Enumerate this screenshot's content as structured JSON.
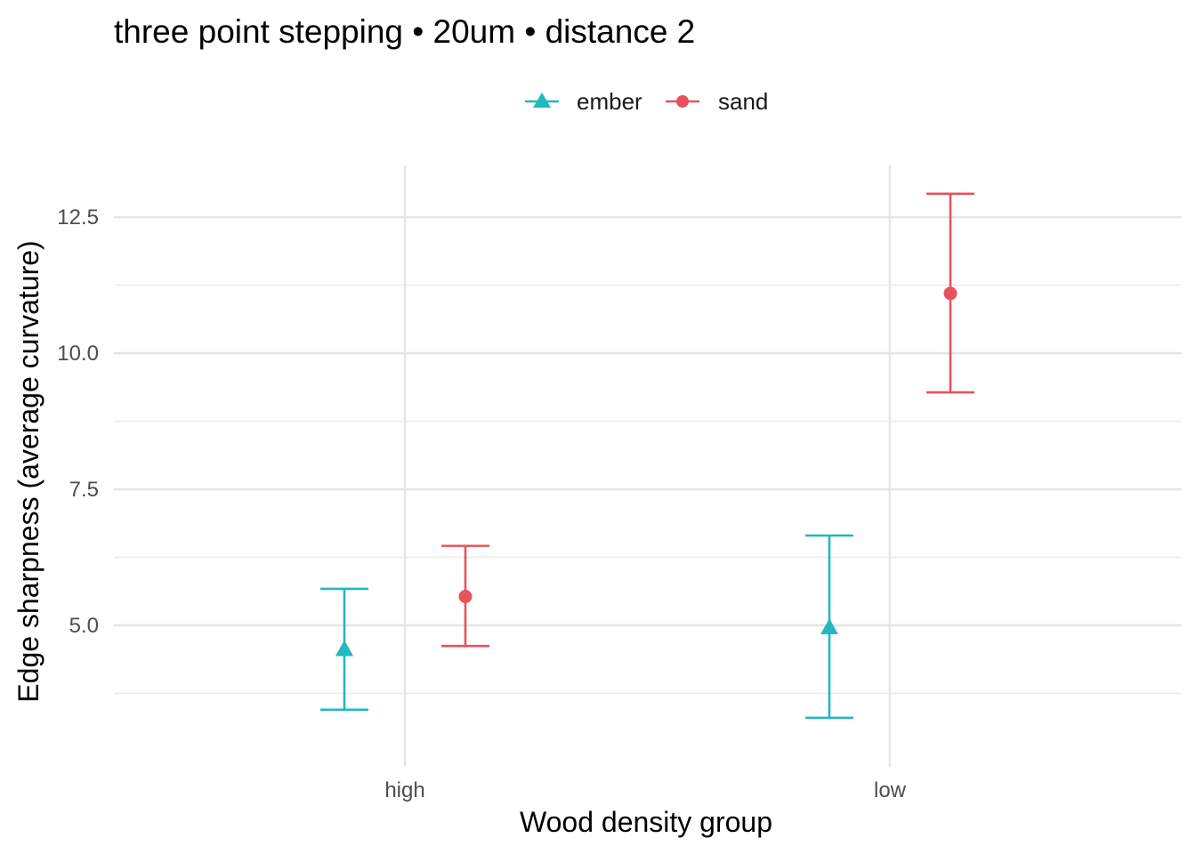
{
  "chart_data": {
    "type": "scatter",
    "title": "three point stepping • 20um • distance 2",
    "xlabel": "Wood density group",
    "ylabel": "Edge sharpness (average curvature)",
    "categories": [
      "high",
      "low"
    ],
    "y_ticks": [
      5.0,
      7.5,
      10.0,
      12.5
    ],
    "y_tick_labels": [
      "5.0",
      "7.5",
      "10.0",
      "12.5"
    ],
    "ylim": [
      2.4,
      13.45
    ],
    "grid": true,
    "legend_position": "top",
    "series": [
      {
        "name": "ember",
        "color": "#22b8bf",
        "marker": "triangle",
        "points": [
          {
            "category": "high",
            "y": 4.55,
            "ymin": 3.45,
            "ymax": 5.67
          },
          {
            "category": "low",
            "y": 4.95,
            "ymin": 3.3,
            "ymax": 6.65
          }
        ]
      },
      {
        "name": "sand",
        "color": "#e8535b",
        "marker": "circle",
        "points": [
          {
            "category": "high",
            "y": 5.53,
            "ymin": 4.62,
            "ymax": 6.46
          },
          {
            "category": "low",
            "y": 11.1,
            "ymin": 9.28,
            "ymax": 12.93
          }
        ]
      }
    ]
  }
}
